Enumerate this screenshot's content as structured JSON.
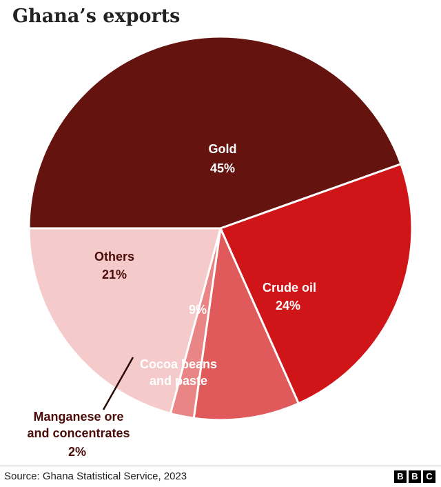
{
  "title": "Ghana’s exports",
  "source": "Source: Ghana Statistical Service, 2023",
  "logo": [
    "B",
    "B",
    "C"
  ],
  "chart_data": {
    "type": "pie",
    "start_angle_deg": 180,
    "direction": "clockwise",
    "slices": [
      {
        "name": "Gold",
        "value": 45,
        "label": "45%",
        "color": "#64130e",
        "text_color": "#ffffff"
      },
      {
        "name": "Crude oil",
        "value": 24,
        "label": "24%",
        "color": "#cf1518",
        "text_color": "#ffffff"
      },
      {
        "name": "Cocoa beans\nand paste",
        "value": 9,
        "label": "9%",
        "color": "#e05a5c",
        "text_color": "#ffffff"
      },
      {
        "name": "Manganese ore\nand concentrates",
        "value": 2,
        "label": "2%",
        "color": "#e98585",
        "text_color": "#4a0c09"
      },
      {
        "name": "Others",
        "value": 21,
        "label": "21%",
        "color": "#f4cbca",
        "text_color": "#4a0c09"
      }
    ]
  }
}
